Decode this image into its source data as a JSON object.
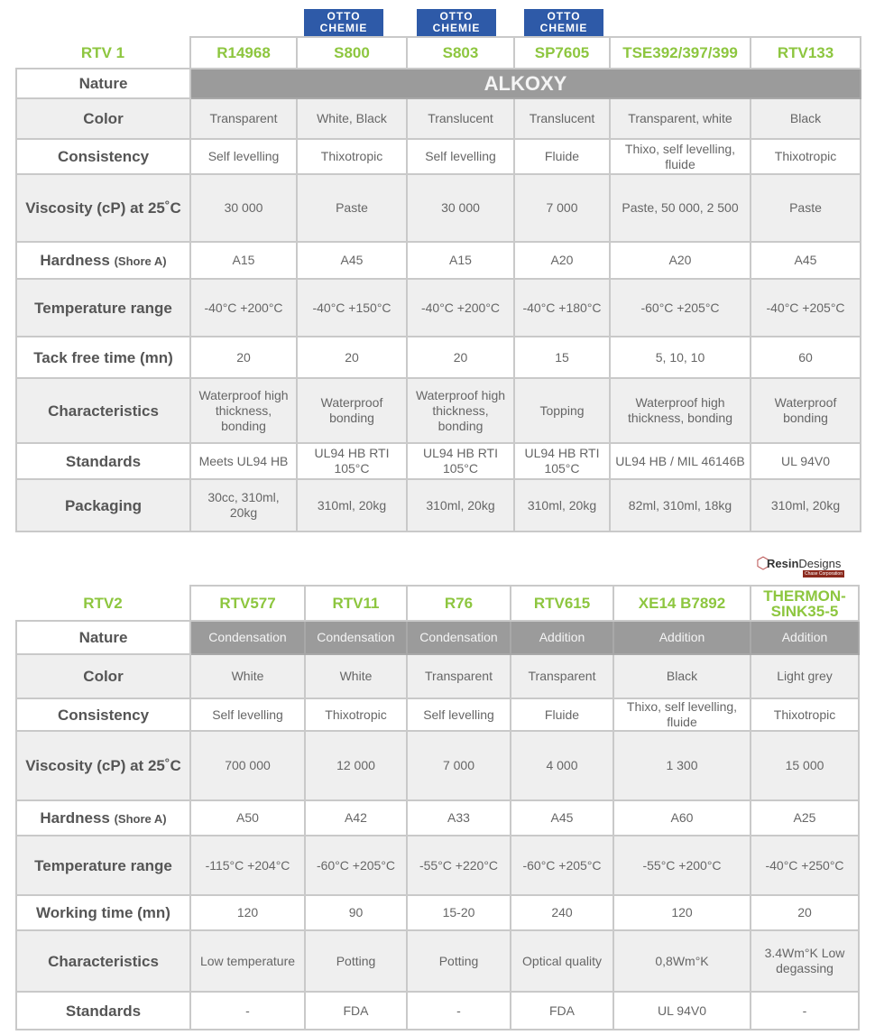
{
  "logos": {
    "otto_line1": "OTTO",
    "otto_line2": "CHEMIE",
    "resin_a": "Resin",
    "resin_b": "Designs",
    "resin_sub": "Chase Corporation"
  },
  "table1": {
    "corner": "RTV 1",
    "products": [
      "R14968",
      "S800",
      "S803",
      "SP7605",
      "TSE392/397/399",
      "RTV133"
    ],
    "nature_label": "Nature",
    "nature_value": "ALKOXY",
    "rows": [
      {
        "label": "Color",
        "values": [
          "Transparent",
          "White, Black",
          "Translucent",
          "Translucent",
          "Transparent, white",
          "Black"
        ]
      },
      {
        "label": "Consistency",
        "values": [
          "Self levelling",
          "Thixotropic",
          "Self levelling",
          "Fluide",
          "Thixo, self levelling, fluide",
          "Thixotropic"
        ]
      },
      {
        "label": "Viscosity (cP) at 25˚C",
        "values": [
          "30 000",
          "Paste",
          "30 000",
          "7 000",
          "Paste, 50 000, 2 500",
          "Paste"
        ]
      },
      {
        "label": "Hardness",
        "unit": "(Shore A)",
        "values": [
          "A15",
          "A45",
          "A15",
          "A20",
          "A20",
          "A45"
        ]
      },
      {
        "label": "Temperature range",
        "values": [
          "-40°C +200°C",
          "-40°C +150°C",
          "-40°C +200°C",
          "-40°C +180°C",
          "-60°C +205°C",
          "-40°C +205°C"
        ]
      },
      {
        "label": "Tack free time (mn)",
        "values": [
          "20",
          "20",
          "20",
          "15",
          "5, 10, 10",
          "60"
        ]
      },
      {
        "label": "Characteristics",
        "values": [
          "Waterproof high thickness, bonding",
          "Waterproof bonding",
          "Waterproof high thickness, bonding",
          "Topping",
          "Waterproof high thickness, bonding",
          "Waterproof bonding"
        ]
      },
      {
        "label": "Standards",
        "values": [
          "Meets UL94 HB",
          "UL94 HB RTI 105°C",
          "UL94 HB RTI 105°C",
          "UL94 HB RTI 105°C",
          "UL94 HB / MIL 46146B",
          "UL 94V0"
        ]
      },
      {
        "label": "Packaging",
        "values": [
          "30cc, 310ml, 20kg",
          "310ml, 20kg",
          "310ml, 20kg",
          "310ml, 20kg",
          "82ml, 310ml, 18kg",
          "310ml, 20kg"
        ]
      }
    ]
  },
  "table2": {
    "corner": "RTV2",
    "products": [
      "RTV577",
      "RTV11",
      "R76",
      "RTV615",
      "XE14 B7892",
      "THERMON-SINK35-5"
    ],
    "nature_label": "Nature",
    "nature_values": [
      "Condensation",
      "Condensation",
      "Condensation",
      "Addition",
      "Addition",
      "Addition"
    ],
    "rows": [
      {
        "label": "Color",
        "values": [
          "White",
          "White",
          "Transparent",
          "Transparent",
          "Black",
          "Light grey"
        ]
      },
      {
        "label": "Consistency",
        "values": [
          "Self levelling",
          "Thixotropic",
          "Self levelling",
          "Fluide",
          "Thixo,  self levelling, fluide",
          "Thixotropic"
        ]
      },
      {
        "label": "Viscosity (cP) at 25˚C",
        "values": [
          "700 000",
          "12 000",
          "7 000",
          "4 000",
          "1 300",
          "15 000"
        ]
      },
      {
        "label": "Hardness",
        "unit": "(Shore A)",
        "values": [
          "A50",
          "A42",
          "A33",
          "A45",
          "A60",
          "A25"
        ]
      },
      {
        "label": "Temperature range",
        "values": [
          "-115°C +204°C",
          "-60°C +205°C",
          "-55°C +220°C",
          "-60°C +205°C",
          "-55°C +200°C",
          "-40°C +250°C"
        ]
      },
      {
        "label": "Working time (mn)",
        "values": [
          "120",
          "90",
          "15-20",
          "240",
          "120",
          "20"
        ]
      },
      {
        "label": "Characteristics",
        "values": [
          "Low temperature",
          "Potting",
          "Potting",
          "Optical quality",
          "0,8Wm°K",
          "3.4Wm°K Low degassing"
        ]
      },
      {
        "label": "Standards",
        "values": [
          "-",
          "FDA",
          "-",
          "FDA",
          "UL 94V0",
          "-"
        ]
      }
    ]
  }
}
